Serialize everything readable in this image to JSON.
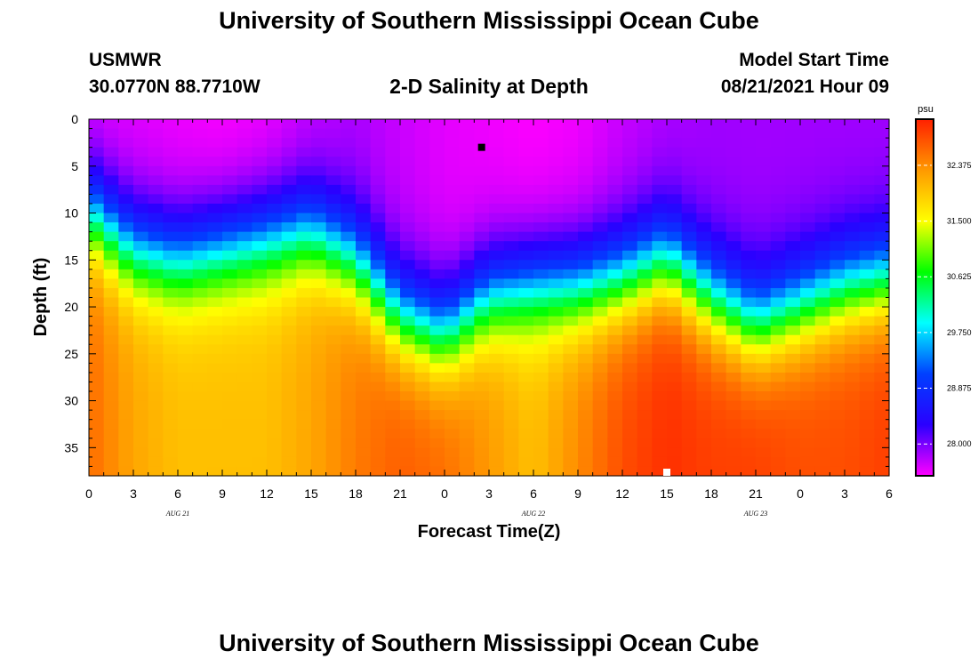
{
  "header": {
    "title": "University of Southern Mississippi Ocean Cube",
    "station": "USMWR",
    "coordinates": "30.0770N  88.7710W",
    "model_start_label": "Model Start Time",
    "model_start_value": "08/21/2021 Hour 09"
  },
  "footer": {
    "title": "University of Southern Mississippi Ocean Cube"
  },
  "chart_data": {
    "type": "heatmap",
    "title": "2-D Salinity at Depth",
    "xlabel": "Forecast Time(Z)",
    "ylabel": "Depth (ft)",
    "x_tick_labels": [
      "0",
      "3",
      "6",
      "9",
      "12",
      "15",
      "18",
      "21",
      "0",
      "3",
      "6",
      "9",
      "12",
      "15",
      "18",
      "21",
      "0",
      "3",
      "6"
    ],
    "x_hours_range": [
      0,
      54
    ],
    "date_labels": [
      {
        "text": "AUG 21",
        "hour": 6
      },
      {
        "text": "AUG 22",
        "hour": 30
      },
      {
        "text": "AUG 23",
        "hour": 45
      }
    ],
    "y_ticks": [
      0,
      5,
      10,
      15,
      20,
      25,
      30,
      35
    ],
    "ylim": [
      0,
      38
    ],
    "colorbar": {
      "unit": "psu",
      "range": [
        27.5,
        33.1
      ],
      "ticks": [
        "28.000",
        "28.875",
        "29.750",
        "30.625",
        "31.500",
        "32.375"
      ],
      "colors": [
        "#ff00ff",
        "#2a00ff",
        "#0040ff",
        "#00ffff",
        "#00ff00",
        "#ffff00",
        "#ff9900",
        "#ff2000"
      ]
    },
    "surface_salinity": [
      27.6,
      27.6,
      27.55,
      27.5,
      27.55,
      27.7,
      27.8,
      27.7,
      27.6,
      27.55,
      27.5,
      27.55,
      27.7,
      27.8,
      27.85,
      27.85,
      27.85,
      27.85,
      27.85
    ],
    "bottom_salinity": [
      32.6,
      32.2,
      32.0,
      32.0,
      32.0,
      32.2,
      32.5,
      32.7,
      32.6,
      32.3,
      32.0,
      32.4,
      32.8,
      33.0,
      32.9,
      32.9,
      32.8,
      32.8,
      32.9
    ],
    "halocline_depth_ft": [
      10,
      14,
      15,
      14,
      13,
      12,
      15,
      21,
      23,
      19,
      18,
      18,
      17,
      15,
      19,
      22,
      20,
      18,
      17
    ],
    "markers": [
      {
        "hour": 26.5,
        "depth": 3,
        "color": "#000000"
      },
      {
        "hour": 39,
        "depth": 38,
        "color": "#ffffff"
      }
    ]
  }
}
